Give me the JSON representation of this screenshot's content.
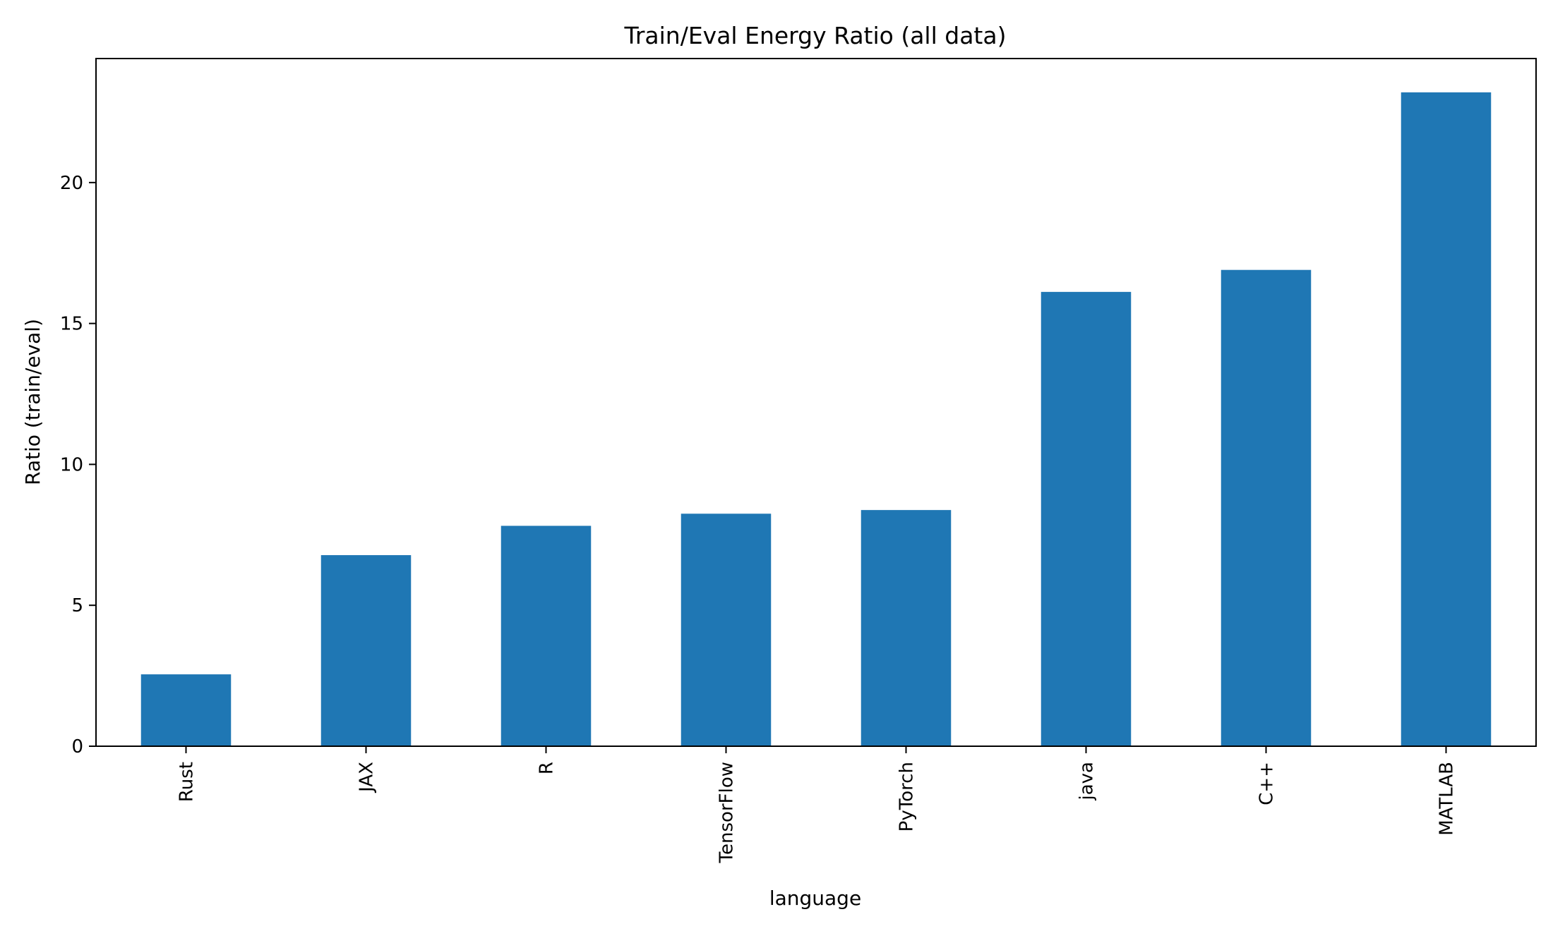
{
  "chart_data": {
    "type": "bar",
    "title": "Train/Eval Energy Ratio (all data)",
    "xlabel": "language",
    "ylabel": "Ratio (train/eval)",
    "categories": [
      "Rust",
      "JAX",
      "R",
      "TensorFlow",
      "PyTorch",
      "java",
      "C++",
      "MATLAB"
    ],
    "values": [
      2.55,
      6.78,
      7.82,
      8.25,
      8.38,
      16.12,
      16.9,
      23.2
    ],
    "ylim": [
      0,
      24.4
    ],
    "yticks": [
      0,
      5,
      10,
      15,
      20
    ],
    "bar_color": "#1f77b4",
    "grid": false,
    "legend": false
  }
}
